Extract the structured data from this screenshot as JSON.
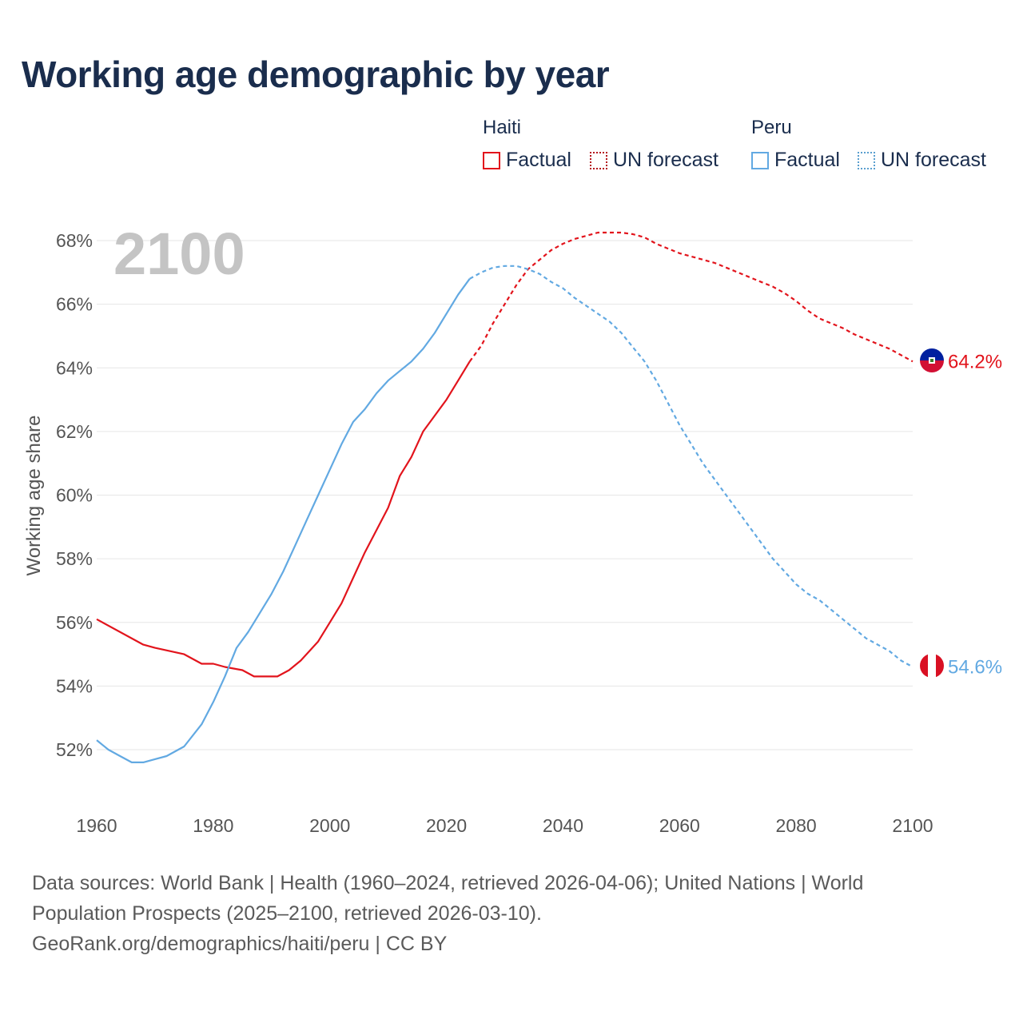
{
  "title": "Working age demographic by year",
  "legend": {
    "groups": [
      {
        "name": "Haiti",
        "items": [
          "Factual",
          "UN forecast"
        ]
      },
      {
        "name": "Peru",
        "items": [
          "Factual",
          "UN forecast"
        ]
      }
    ]
  },
  "colors": {
    "haiti": "#e2141c",
    "peru": "#62a9e2",
    "grid": "#e6e6e6",
    "axis_text": "#555555",
    "year_watermark": "#c4c4c4"
  },
  "sources": {
    "line1": "Data sources: World Bank | Health (1960–2024, retrieved 2026-04-06); United Nations | World",
    "line2": "Population Prospects (2025–2100, retrieved 2026-03-10).",
    "line3": "GeoRank.org/demographics/haiti/peru | CC BY"
  },
  "chart_data": {
    "type": "line",
    "title": "Working age demographic by year",
    "current_year_label": "2100",
    "xlabel": "",
    "ylabel": "Working age share",
    "xlim": [
      1960,
      2100
    ],
    "ylim": [
      51,
      69
    ],
    "x_ticks": [
      "1960",
      "1980",
      "2000",
      "2020",
      "2040",
      "2060",
      "2080",
      "2100"
    ],
    "y_ticks": [
      "52%",
      "54%",
      "56%",
      "58%",
      "60%",
      "62%",
      "64%",
      "66%",
      "68%"
    ],
    "factual_end_year": 2024,
    "series": [
      {
        "name": "Haiti",
        "color": "#e2141c",
        "end_label": "64.2%",
        "end_flag": "haiti-flag",
        "points": [
          [
            1960,
            56.1
          ],
          [
            1968,
            55.3
          ],
          [
            1970,
            55.2
          ],
          [
            1975,
            55.0
          ],
          [
            1978,
            54.7
          ],
          [
            1980,
            54.7
          ],
          [
            1982,
            54.6
          ],
          [
            1985,
            54.5
          ],
          [
            1987,
            54.3
          ],
          [
            1991,
            54.3
          ],
          [
            1993,
            54.5
          ],
          [
            1995,
            54.8
          ],
          [
            1998,
            55.4
          ],
          [
            2000,
            56.0
          ],
          [
            2002,
            56.6
          ],
          [
            2004,
            57.4
          ],
          [
            2006,
            58.2
          ],
          [
            2008,
            58.9
          ],
          [
            2010,
            59.6
          ],
          [
            2012,
            60.6
          ],
          [
            2014,
            61.2
          ],
          [
            2016,
            62.0
          ],
          [
            2018,
            62.5
          ],
          [
            2020,
            63.0
          ],
          [
            2022,
            63.6
          ],
          [
            2024,
            64.2
          ],
          [
            2026,
            64.7
          ],
          [
            2028,
            65.4
          ],
          [
            2030,
            66.0
          ],
          [
            2032,
            66.6
          ],
          [
            2034,
            67.1
          ],
          [
            2036,
            67.4
          ],
          [
            2038,
            67.7
          ],
          [
            2040,
            67.9
          ],
          [
            2042,
            68.05
          ],
          [
            2044,
            68.15
          ],
          [
            2046,
            68.25
          ],
          [
            2048,
            68.25
          ],
          [
            2050,
            68.25
          ],
          [
            2052,
            68.2
          ],
          [
            2054,
            68.1
          ],
          [
            2056,
            67.9
          ],
          [
            2058,
            67.75
          ],
          [
            2060,
            67.6
          ],
          [
            2062,
            67.5
          ],
          [
            2064,
            67.4
          ],
          [
            2066,
            67.3
          ],
          [
            2068,
            67.15
          ],
          [
            2070,
            67.0
          ],
          [
            2072,
            66.85
          ],
          [
            2074,
            66.7
          ],
          [
            2076,
            66.55
          ],
          [
            2078,
            66.35
          ],
          [
            2080,
            66.1
          ],
          [
            2082,
            65.8
          ],
          [
            2084,
            65.55
          ],
          [
            2086,
            65.4
          ],
          [
            2088,
            65.25
          ],
          [
            2090,
            65.05
          ],
          [
            2092,
            64.9
          ],
          [
            2094,
            64.75
          ],
          [
            2096,
            64.6
          ],
          [
            2098,
            64.4
          ],
          [
            2100,
            64.2
          ]
        ]
      },
      {
        "name": "Peru",
        "color": "#62a9e2",
        "end_label": "54.6%",
        "end_flag": "peru-flag",
        "points": [
          [
            1960,
            52.3
          ],
          [
            1962,
            52.0
          ],
          [
            1964,
            51.8
          ],
          [
            1966,
            51.6
          ],
          [
            1968,
            51.6
          ],
          [
            1970,
            51.7
          ],
          [
            1972,
            51.8
          ],
          [
            1975,
            52.1
          ],
          [
            1978,
            52.8
          ],
          [
            1980,
            53.5
          ],
          [
            1982,
            54.3
          ],
          [
            1984,
            55.2
          ],
          [
            1986,
            55.7
          ],
          [
            1988,
            56.3
          ],
          [
            1990,
            56.9
          ],
          [
            1992,
            57.6
          ],
          [
            1994,
            58.4
          ],
          [
            1996,
            59.2
          ],
          [
            1998,
            60.0
          ],
          [
            2000,
            60.8
          ],
          [
            2002,
            61.6
          ],
          [
            2004,
            62.3
          ],
          [
            2006,
            62.7
          ],
          [
            2008,
            63.2
          ],
          [
            2010,
            63.6
          ],
          [
            2012,
            63.9
          ],
          [
            2014,
            64.2
          ],
          [
            2016,
            64.6
          ],
          [
            2018,
            65.1
          ],
          [
            2020,
            65.7
          ],
          [
            2022,
            66.3
          ],
          [
            2024,
            66.8
          ],
          [
            2026,
            67.0
          ],
          [
            2028,
            67.15
          ],
          [
            2030,
            67.2
          ],
          [
            2032,
            67.2
          ],
          [
            2034,
            67.1
          ],
          [
            2036,
            66.95
          ],
          [
            2038,
            66.7
          ],
          [
            2040,
            66.5
          ],
          [
            2042,
            66.2
          ],
          [
            2044,
            65.95
          ],
          [
            2046,
            65.7
          ],
          [
            2048,
            65.45
          ],
          [
            2050,
            65.1
          ],
          [
            2052,
            64.65
          ],
          [
            2054,
            64.2
          ],
          [
            2056,
            63.6
          ],
          [
            2058,
            62.9
          ],
          [
            2060,
            62.2
          ],
          [
            2062,
            61.6
          ],
          [
            2064,
            61.0
          ],
          [
            2066,
            60.5
          ],
          [
            2068,
            60.0
          ],
          [
            2070,
            59.5
          ],
          [
            2072,
            59.0
          ],
          [
            2074,
            58.5
          ],
          [
            2076,
            58.0
          ],
          [
            2078,
            57.6
          ],
          [
            2080,
            57.2
          ],
          [
            2082,
            56.9
          ],
          [
            2084,
            56.7
          ],
          [
            2086,
            56.4
          ],
          [
            2088,
            56.1
          ],
          [
            2090,
            55.8
          ],
          [
            2092,
            55.5
          ],
          [
            2094,
            55.3
          ],
          [
            2096,
            55.1
          ],
          [
            2098,
            54.8
          ],
          [
            2100,
            54.6
          ]
        ]
      }
    ]
  }
}
